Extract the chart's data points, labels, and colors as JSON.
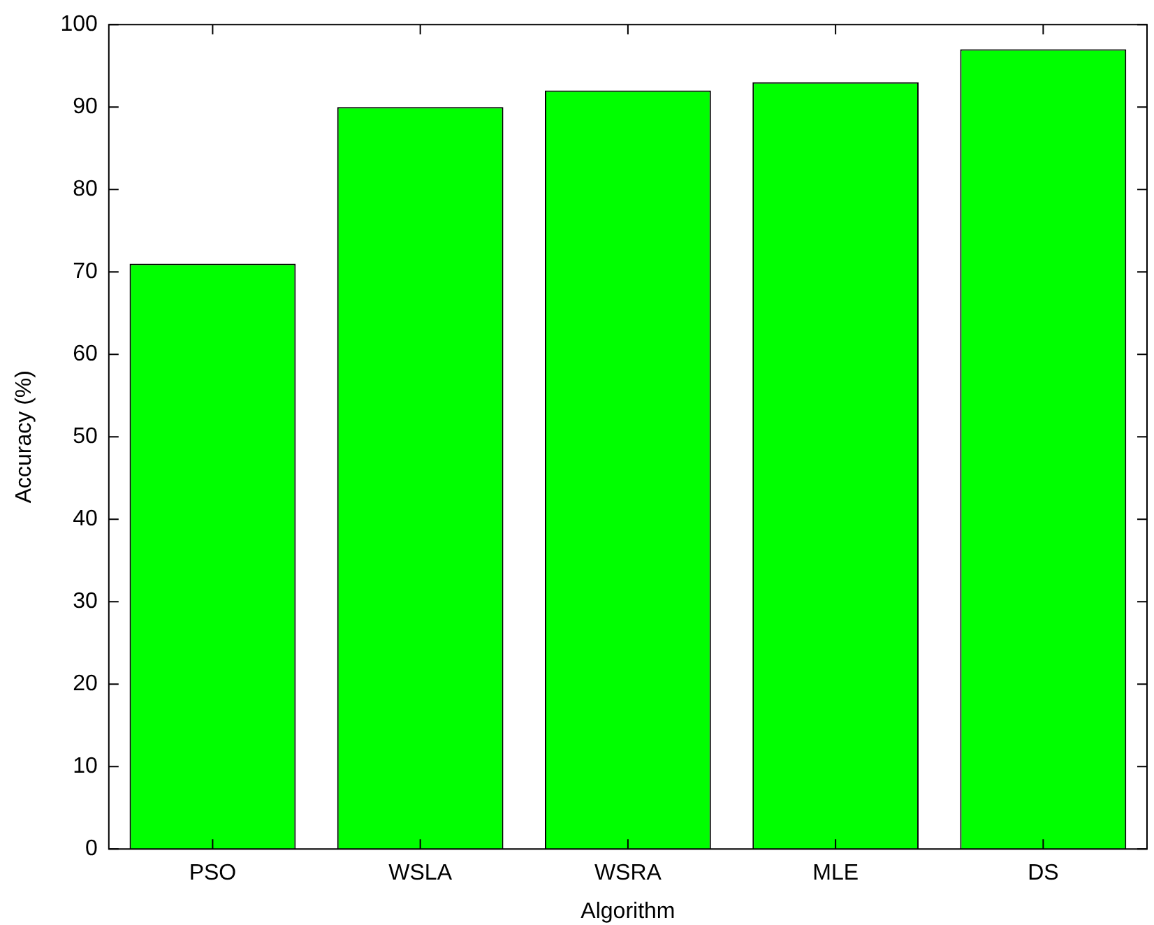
{
  "chart_data": {
    "type": "bar",
    "xlabel": "Algorithm",
    "ylabel": "Accuracy (%)",
    "categories": [
      "PSO",
      "WSLA",
      "WSRA",
      "MLE",
      "DS"
    ],
    "values": [
      71,
      90,
      92,
      93,
      97
    ],
    "color": "#00ff00",
    "ylim": [
      0,
      100
    ],
    "yticks": [
      0,
      10,
      20,
      30,
      40,
      50,
      60,
      70,
      80,
      90,
      100
    ],
    "grid": false,
    "legend": false
  }
}
